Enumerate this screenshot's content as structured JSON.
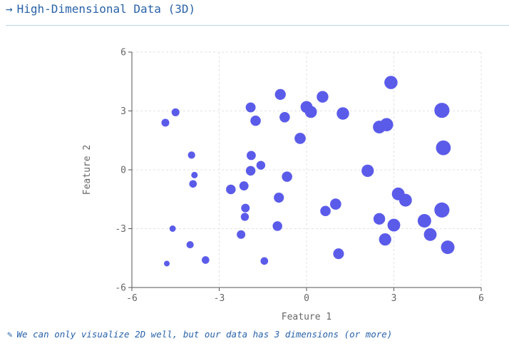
{
  "header": {
    "arrow": "→",
    "title": "High-Dimensional Data (3D)",
    "arrow_icon": "arrow-right-icon"
  },
  "footer": {
    "icon": "pencil-icon",
    "glyph": "✎",
    "note": "We can only visualize 2D well, but our data has 3 dimensions (or more)"
  },
  "colors": {
    "accent": "#2962a8",
    "point": "#5b5bea",
    "divider": "#b9d4e6",
    "grid": "#e2e2e2",
    "axis": "#555555"
  },
  "chart_data": {
    "type": "scatter",
    "title": "",
    "xlabel": "Feature 1",
    "ylabel": "Feature 2",
    "xlim": [
      -6,
      6
    ],
    "ylim": [
      -6,
      6
    ],
    "xticks": [
      -6,
      -3,
      0,
      3,
      6
    ],
    "yticks": [
      -6,
      -3,
      0,
      3,
      6
    ],
    "grid": true,
    "size_encodes": "third feature",
    "points": [
      {
        "x": -4.85,
        "y": 2.4,
        "z": 0.14
      },
      {
        "x": -4.5,
        "y": 2.93,
        "z": 0.14
      },
      {
        "x": -3.95,
        "y": 0.75,
        "z": 0.1
      },
      {
        "x": -3.85,
        "y": -0.27,
        "z": 0.05
      },
      {
        "x": -3.9,
        "y": -0.72,
        "z": 0.12
      },
      {
        "x": -4.6,
        "y": -3.0,
        "z": 0.04
      },
      {
        "x": -4.8,
        "y": -4.78,
        "z": 0.0
      },
      {
        "x": -4.0,
        "y": -3.82,
        "z": 0.1
      },
      {
        "x": -3.47,
        "y": -4.6,
        "z": 0.12
      },
      {
        "x": -2.6,
        "y": -1.0,
        "z": 0.25
      },
      {
        "x": -2.15,
        "y": -0.82,
        "z": 0.22
      },
      {
        "x": -2.1,
        "y": -1.95,
        "z": 0.18
      },
      {
        "x": -2.12,
        "y": -2.4,
        "z": 0.15
      },
      {
        "x": -2.25,
        "y": -3.3,
        "z": 0.18
      },
      {
        "x": -1.92,
        "y": 3.18,
        "z": 0.27
      },
      {
        "x": -1.75,
        "y": 2.5,
        "z": 0.3
      },
      {
        "x": -1.9,
        "y": 0.73,
        "z": 0.22
      },
      {
        "x": -1.92,
        "y": -0.05,
        "z": 0.25
      },
      {
        "x": -1.57,
        "y": 0.23,
        "z": 0.2
      },
      {
        "x": -1.45,
        "y": -4.65,
        "z": 0.12
      },
      {
        "x": -0.9,
        "y": 3.84,
        "z": 0.33
      },
      {
        "x": -0.75,
        "y": 2.68,
        "z": 0.3
      },
      {
        "x": -0.67,
        "y": -0.35,
        "z": 0.3
      },
      {
        "x": -0.95,
        "y": -1.42,
        "z": 0.28
      },
      {
        "x": -1.0,
        "y": -2.87,
        "z": 0.25
      },
      {
        "x": -0.22,
        "y": 1.6,
        "z": 0.35
      },
      {
        "x": 0.0,
        "y": 3.2,
        "z": 0.4
      },
      {
        "x": 0.15,
        "y": 2.95,
        "z": 0.4
      },
      {
        "x": 0.55,
        "y": 3.72,
        "z": 0.38
      },
      {
        "x": 1.25,
        "y": 2.87,
        "z": 0.43
      },
      {
        "x": 0.65,
        "y": -2.1,
        "z": 0.3
      },
      {
        "x": 1.0,
        "y": -1.75,
        "z": 0.35
      },
      {
        "x": 1.1,
        "y": -4.28,
        "z": 0.32
      },
      {
        "x": 2.1,
        "y": -0.05,
        "z": 0.42
      },
      {
        "x": 2.5,
        "y": 2.18,
        "z": 0.45
      },
      {
        "x": 2.75,
        "y": 2.3,
        "z": 0.48
      },
      {
        "x": 2.9,
        "y": 4.45,
        "z": 0.48
      },
      {
        "x": 2.5,
        "y": -2.5,
        "z": 0.38
      },
      {
        "x": 2.7,
        "y": -3.55,
        "z": 0.42
      },
      {
        "x": 3.0,
        "y": -2.82,
        "z": 0.45
      },
      {
        "x": 3.15,
        "y": -1.23,
        "z": 0.45
      },
      {
        "x": 3.4,
        "y": -1.55,
        "z": 0.45
      },
      {
        "x": 4.05,
        "y": -2.6,
        "z": 0.5
      },
      {
        "x": 4.25,
        "y": -3.3,
        "z": 0.45
      },
      {
        "x": 4.65,
        "y": 3.03,
        "z": 0.6
      },
      {
        "x": 4.7,
        "y": 1.12,
        "z": 0.58
      },
      {
        "x": 4.65,
        "y": -2.05,
        "z": 0.6
      },
      {
        "x": 4.85,
        "y": -3.95,
        "z": 0.5
      }
    ]
  }
}
